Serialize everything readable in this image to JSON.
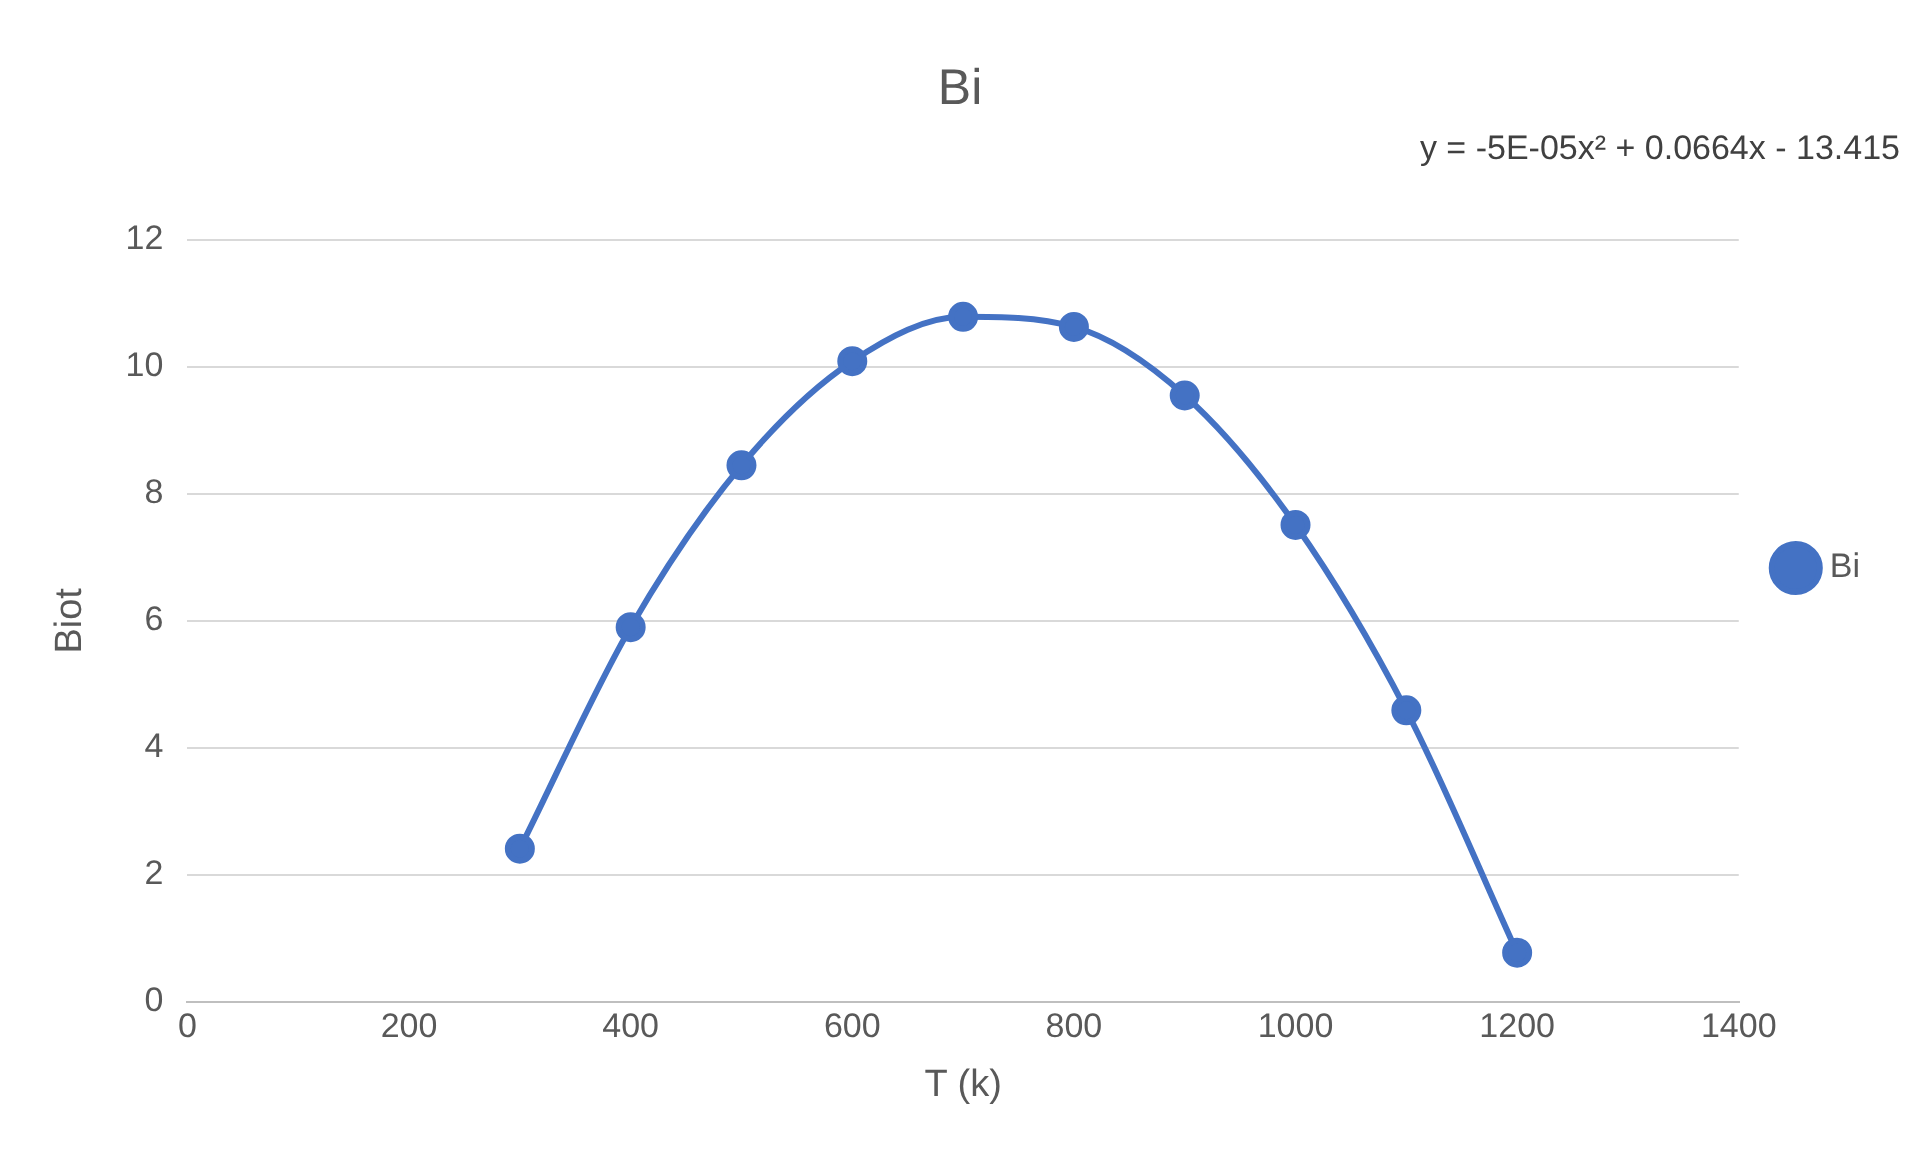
{
  "chart_data": {
    "type": "line",
    "title": "Bi",
    "xlabel": "T (k)",
    "ylabel": "Biot",
    "x": [
      300,
      400,
      500,
      600,
      700,
      800,
      900,
      1000,
      1100,
      1200
    ],
    "series": [
      {
        "name": "Bi",
        "color": "#4472c4",
        "values": [
          2.41,
          5.9,
          8.45,
          10.09,
          10.79,
          10.63,
          9.55,
          7.51,
          4.59,
          0.77
        ]
      }
    ],
    "xlim": [
      0,
      1400
    ],
    "xticks": [
      0,
      200,
      400,
      600,
      800,
      1000,
      1200,
      1400
    ],
    "ylim": [
      0,
      12
    ],
    "yticks": [
      0,
      2,
      4,
      6,
      8,
      10,
      12
    ],
    "grid": "y",
    "legend": "right",
    "marker": "circle",
    "line_style": "solid",
    "annotations": [
      "y = -5E-05x² + 0.0664x - 13.415"
    ]
  }
}
